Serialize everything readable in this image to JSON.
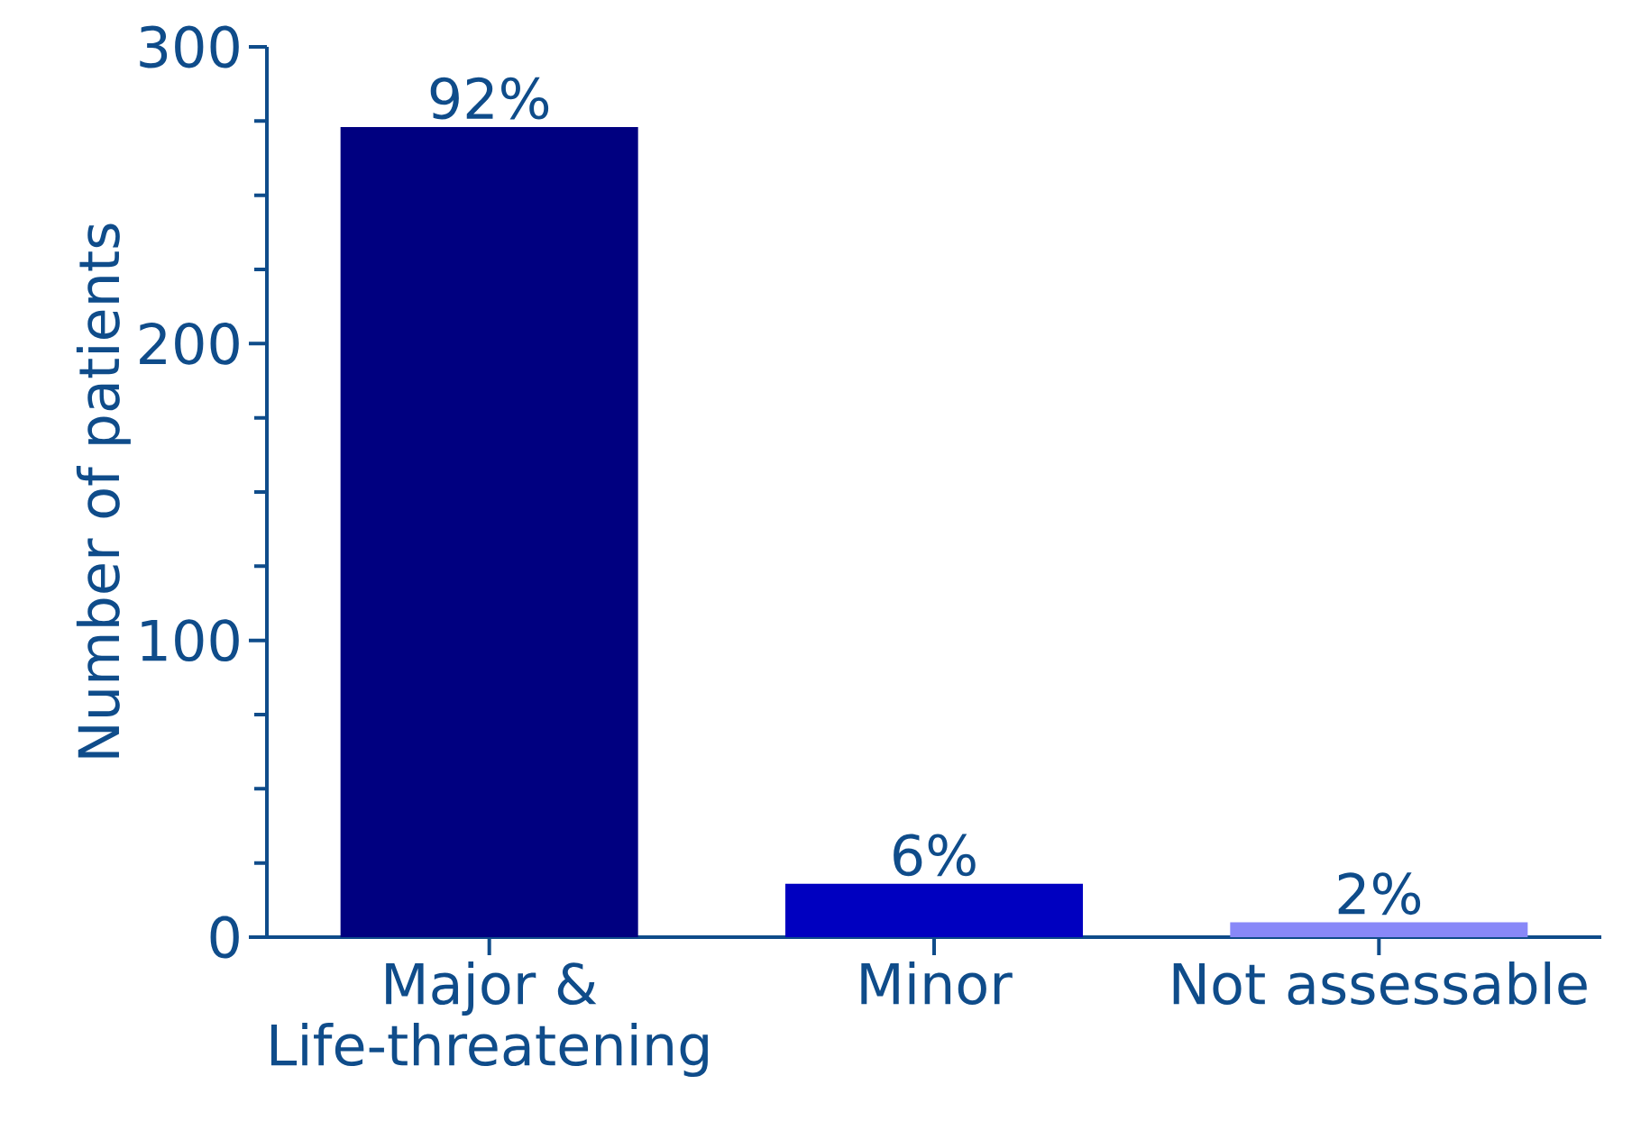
{
  "chart_data": {
    "type": "bar",
    "ylabel": "Number of patients",
    "categories": [
      "Major & Life-threatening",
      "Minor",
      "Not assessable"
    ],
    "values": [
      273,
      18,
      5
    ],
    "colors": [
      "#000080",
      "#0000c0",
      "#8888f8"
    ],
    "annotations": [
      {
        "text": "92%",
        "x": "Major & Life-threatening",
        "y": 273
      },
      {
        "text": "6%",
        "x": "Minor",
        "y": 18
      },
      {
        "text": "2%",
        "x": "Not assessable",
        "y": 5
      }
    ],
    "ylim": [
      0,
      300
    ],
    "yticks": [
      0,
      {
        "value": 25,
        "label": null
      },
      {
        "value": 50,
        "label": null
      },
      {
        "value": 75,
        "label": null
      },
      100,
      {
        "value": 125,
        "label": null
      },
      {
        "value": 150,
        "label": null
      },
      {
        "value": 175,
        "label": null
      },
      200,
      {
        "value": 225,
        "label": null
      },
      {
        "value": 250,
        "label": null
      },
      {
        "value": 275,
        "label": null
      },
      300
    ]
  }
}
